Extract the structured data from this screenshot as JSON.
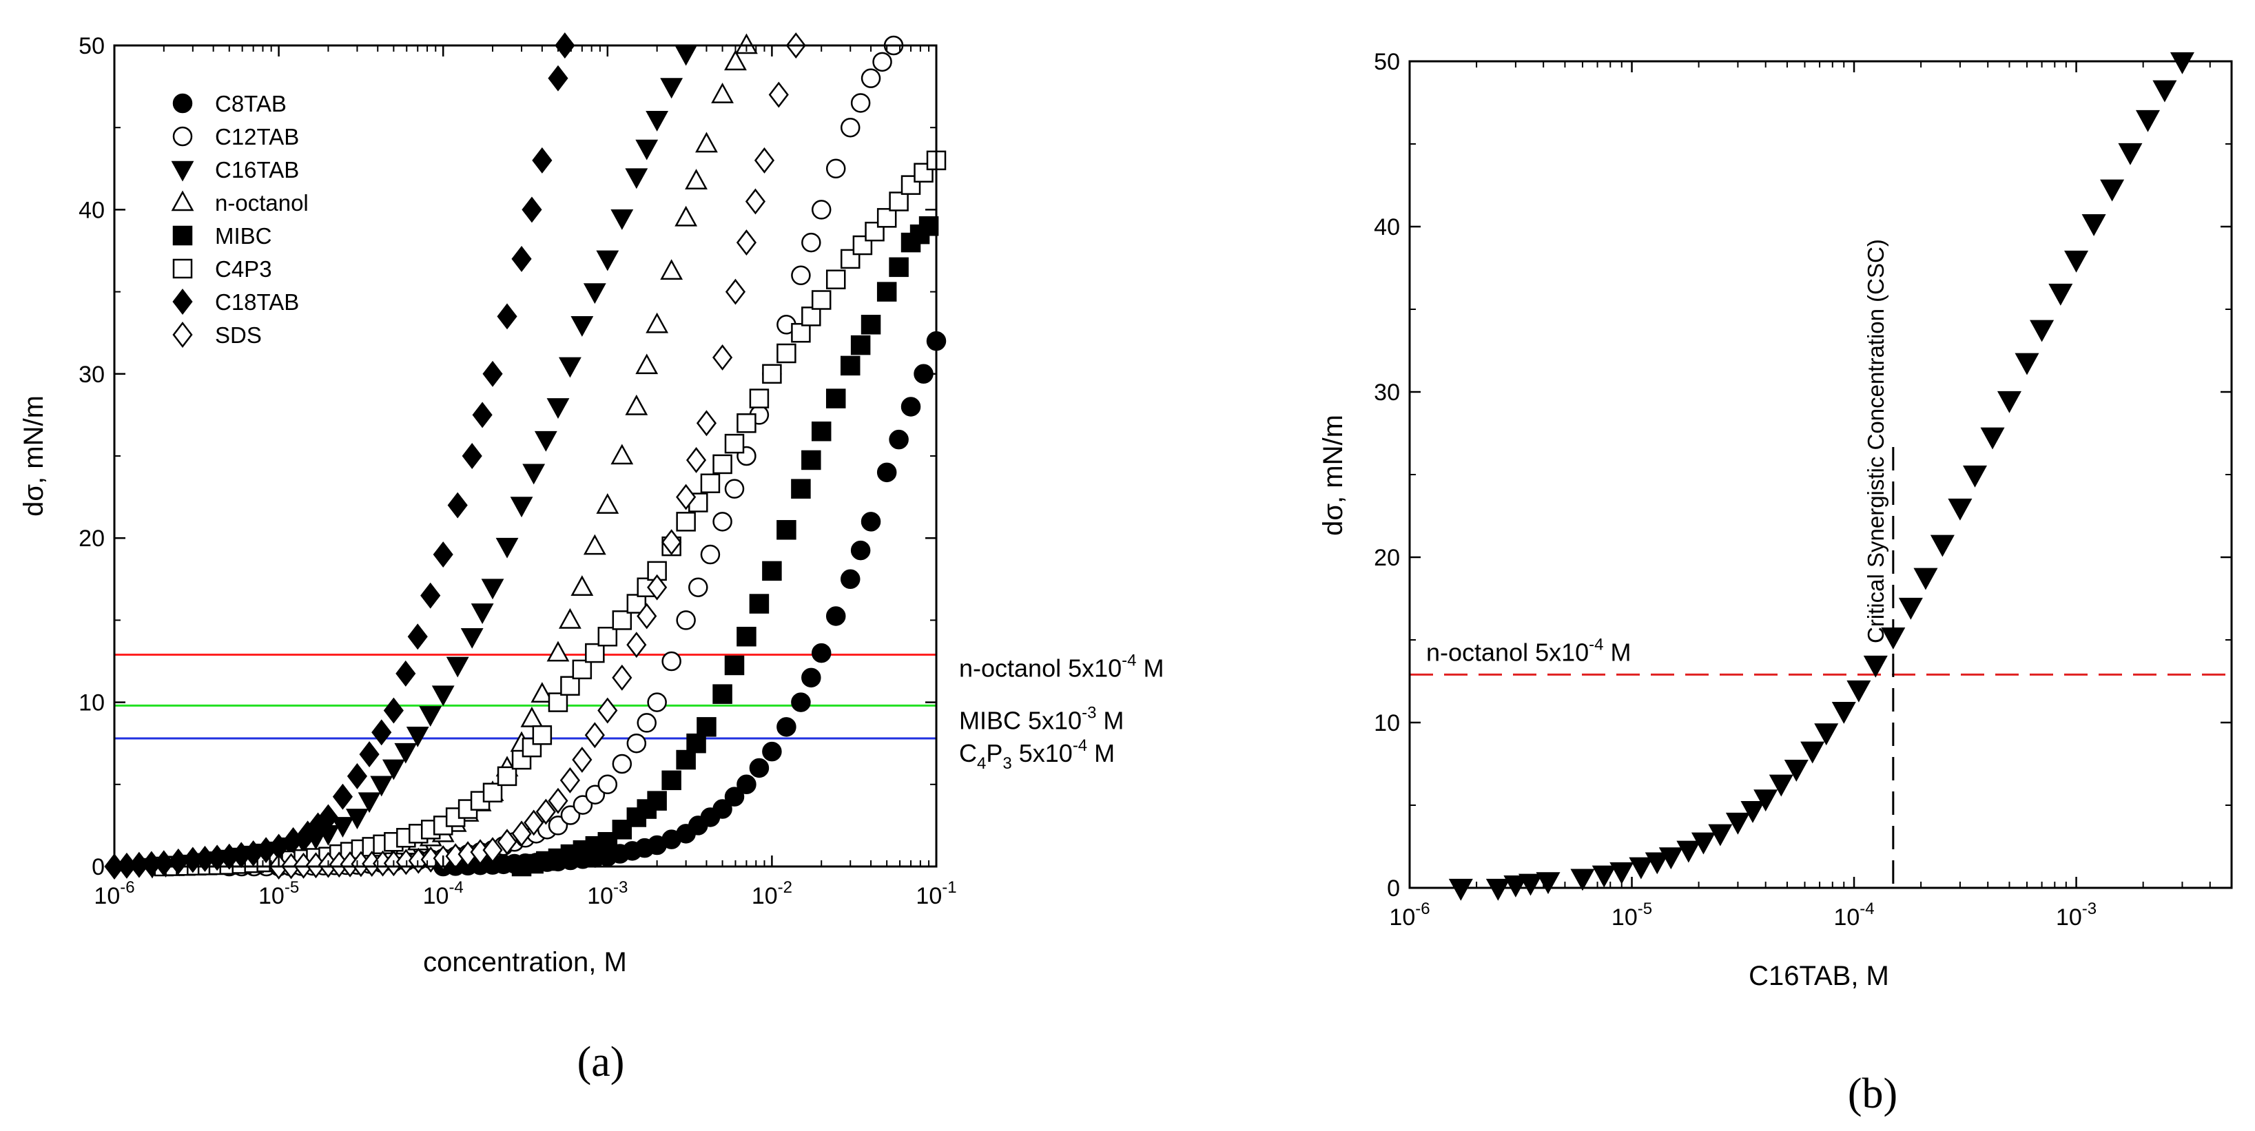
{
  "chart_data": [
    {
      "id": "a",
      "type": "scatter",
      "caption": "(a)",
      "xscale": "log",
      "xlim": [
        1e-06,
        0.1
      ],
      "ylim": [
        0,
        50
      ],
      "xlabel": "concentration, M",
      "ylabel": "dσ, mN/m",
      "xticks": [
        {
          "value": 1e-06,
          "base": "10",
          "exp": "-6"
        },
        {
          "value": 1e-05,
          "base": "10",
          "exp": "-5"
        },
        {
          "value": 0.0001,
          "base": "10",
          "exp": "-4"
        },
        {
          "value": 0.001,
          "base": "10",
          "exp": "-3"
        },
        {
          "value": 0.01,
          "base": "10",
          "exp": "-2"
        },
        {
          "value": 0.1,
          "base": "10",
          "exp": "-1"
        }
      ],
      "yticks": [
        0,
        10,
        20,
        30,
        40,
        50
      ],
      "legend_position": "top-left",
      "series": [
        {
          "name": "C8TAB",
          "marker": "circle",
          "filled": true,
          "x": [
            0.0001,
            0.0002,
            0.0005,
            0.001,
            0.002,
            0.003,
            0.005,
            0.007,
            0.01,
            0.015,
            0.02,
            0.03,
            0.04,
            0.05,
            0.07,
            0.1
          ],
          "y": [
            0,
            0.1,
            0.3,
            0.6,
            1.3,
            2,
            3.5,
            5,
            7,
            10,
            13,
            17.5,
            21,
            24,
            28,
            32
          ]
        },
        {
          "name": "C12TAB",
          "marker": "circle",
          "filled": false,
          "x": [
            5e-06,
            1e-05,
            3e-05,
            0.0001,
            0.0002,
            0.0005,
            0.001,
            0.0015,
            0.002,
            0.003,
            0.005,
            0.007,
            0.01,
            0.015,
            0.02,
            0.03,
            0.04,
            0.055
          ],
          "y": [
            0,
            0,
            0.1,
            0.5,
            1,
            2.5,
            5,
            7.5,
            10,
            15,
            21,
            25,
            30,
            36,
            40,
            45,
            48,
            50
          ]
        },
        {
          "name": "C16TAB",
          "marker": "triangle-down",
          "filled": true,
          "x": [
            1.7e-06,
            3e-06,
            5e-06,
            1e-05,
            2e-05,
            3e-05,
            5e-05,
            7e-05,
            0.0001,
            0.00015,
            0.0002,
            0.0003,
            0.0005,
            0.0007,
            0.001,
            0.0015,
            0.002,
            0.003
          ],
          "y": [
            0,
            0.2,
            0.5,
            1,
            2,
            3,
            6,
            8,
            10.5,
            14,
            17,
            22,
            28,
            33,
            37,
            42,
            45.5,
            49.5
          ]
        },
        {
          "name": "n-octanol",
          "marker": "triangle-up",
          "filled": false,
          "x": [
            3e-05,
            5e-05,
            0.0001,
            0.0002,
            0.0003,
            0.0004,
            0.0005,
            0.0007,
            0.001,
            0.0015,
            0.002,
            0.003,
            0.004,
            0.005,
            0.006,
            0.007
          ],
          "y": [
            0.5,
            1,
            2,
            4.5,
            7.5,
            10.5,
            13,
            17,
            22,
            28,
            33,
            39.5,
            44,
            47,
            49,
            50
          ]
        },
        {
          "name": "MIBC",
          "marker": "square",
          "filled": true,
          "x": [
            0.0003,
            0.0005,
            0.001,
            0.0015,
            0.002,
            0.003,
            0.004,
            0.005,
            0.007,
            0.01,
            0.015,
            0.02,
            0.03,
            0.04,
            0.05,
            0.07,
            0.09
          ],
          "y": [
            0,
            0.5,
            1.5,
            3,
            4,
            6.5,
            8.5,
            10.5,
            14,
            18,
            23,
            26.5,
            30.5,
            33,
            35,
            38,
            39
          ]
        },
        {
          "name": "C4P3",
          "marker": "square",
          "filled": false,
          "x": [
            2e-06,
            5e-06,
            1e-05,
            2e-05,
            5e-05,
            0.0001,
            0.0002,
            0.0003,
            0.0004,
            0.0005,
            0.0007,
            0.001,
            0.0015,
            0.002,
            0.003,
            0.005,
            0.007,
            0.01,
            0.015,
            0.02,
            0.03,
            0.05,
            0.07,
            0.1
          ],
          "y": [
            0,
            0.1,
            0.3,
            0.6,
            1.5,
            2.5,
            4.5,
            6.5,
            8,
            10,
            12,
            14,
            16,
            18,
            21,
            24.5,
            27,
            30,
            32.5,
            34.5,
            37,
            39.5,
            41.5,
            43
          ]
        },
        {
          "name": "C18TAB",
          "marker": "diamond",
          "filled": true,
          "x": [
            1e-06,
            2e-06,
            3e-06,
            5e-06,
            7e-06,
            1e-05,
            1.5e-05,
            2e-05,
            3e-05,
            5e-05,
            7e-05,
            0.0001,
            0.00015,
            0.0002,
            0.0003,
            0.0004,
            0.0005,
            0.00055
          ],
          "y": [
            0,
            0.2,
            0.4,
            0.6,
            0.8,
            1.2,
            2,
            3,
            5.5,
            9.5,
            14,
            19,
            25,
            30,
            37,
            43,
            48,
            50
          ]
        },
        {
          "name": "SDS",
          "marker": "diamond",
          "filled": false,
          "x": [
            1e-05,
            2e-05,
            5e-05,
            0.0001,
            0.0002,
            0.0003,
            0.0005,
            0.0007,
            0.001,
            0.0015,
            0.002,
            0.003,
            0.004,
            0.005,
            0.006,
            0.007,
            0.009,
            0.011,
            0.014
          ],
          "y": [
            0,
            0.1,
            0.2,
            0.5,
            1,
            2,
            4,
            6.5,
            9.5,
            13.5,
            17,
            22.5,
            27,
            31,
            35,
            38,
            43,
            47,
            50
          ]
        }
      ],
      "hlines": [
        {
          "y": 12.9,
          "color": "#ff2020",
          "label": "n-octanol 5x10",
          "exp": "-4",
          "unit": " M"
        },
        {
          "y": 9.8,
          "color": "#22e022",
          "label": "MIBC 5x10",
          "exp": "-3",
          "unit": " M"
        },
        {
          "y": 7.8,
          "color": "#2030e0",
          "label_parts": [
            "C",
            "4",
            "P",
            "3",
            " 5x10"
          ],
          "exp": "-4",
          "unit": " M"
        }
      ]
    },
    {
      "id": "b",
      "type": "scatter",
      "caption": "(b)",
      "xscale": "log",
      "xlim": [
        1e-06,
        0.005
      ],
      "ylim": [
        0,
        50
      ],
      "xlabel": "C16TAB, M",
      "ylabel": "dσ, mN/m",
      "xticks": [
        {
          "value": 1e-06,
          "base": "10",
          "exp": "-6"
        },
        {
          "value": 1e-05,
          "base": "10",
          "exp": "-5"
        },
        {
          "value": 0.0001,
          "base": "10",
          "exp": "-4"
        },
        {
          "value": 0.001,
          "base": "10",
          "exp": "-3"
        }
      ],
      "yticks": [
        0,
        10,
        20,
        30,
        40,
        50
      ],
      "series": [
        {
          "name": "C16TAB",
          "marker": "triangle-down",
          "filled": true,
          "x": [
            1.7e-06,
            2.5e-06,
            3e-06,
            3.5e-06,
            4.2e-06,
            6e-06,
            7.5e-06,
            9e-06,
            1.1e-05,
            1.3e-05,
            1.5e-05,
            1.8e-05,
            2.1e-05,
            2.5e-05,
            3e-05,
            3.5e-05,
            4e-05,
            4.7e-05,
            5.5e-05,
            6.5e-05,
            7.5e-05,
            9e-05,
            0.000105,
            0.000125,
            0.00015,
            0.00018,
            0.00021,
            0.00025,
            0.0003,
            0.00035,
            0.00042,
            0.0005,
            0.0006,
            0.0007,
            0.00085,
            0.001,
            0.0012,
            0.00145,
            0.00175,
            0.0021,
            0.0025,
            0.003
          ],
          "y": [
            0,
            0,
            0.2,
            0.3,
            0.4,
            0.6,
            0.8,
            1.0,
            1.3,
            1.6,
            1.9,
            2.3,
            2.8,
            3.3,
            4.0,
            4.7,
            5.4,
            6.3,
            7.2,
            8.3,
            9.4,
            10.7,
            12.0,
            13.5,
            15.2,
            17.0,
            18.8,
            20.8,
            23.0,
            25.0,
            27.3,
            29.5,
            31.8,
            33.8,
            36.0,
            38.0,
            40.2,
            42.3,
            44.5,
            46.5,
            48.3,
            50
          ]
        }
      ],
      "hlines": [
        {
          "y": 12.9,
          "color": "#e02020",
          "dashed": true,
          "label": "n-octanol 5x10",
          "exp": "-4",
          "unit": " M"
        }
      ],
      "vlines": [
        {
          "x": 0.00015,
          "color": "#000000",
          "dashed": true,
          "label": "Critical Synergistic Concentration (CSC)"
        }
      ]
    }
  ]
}
